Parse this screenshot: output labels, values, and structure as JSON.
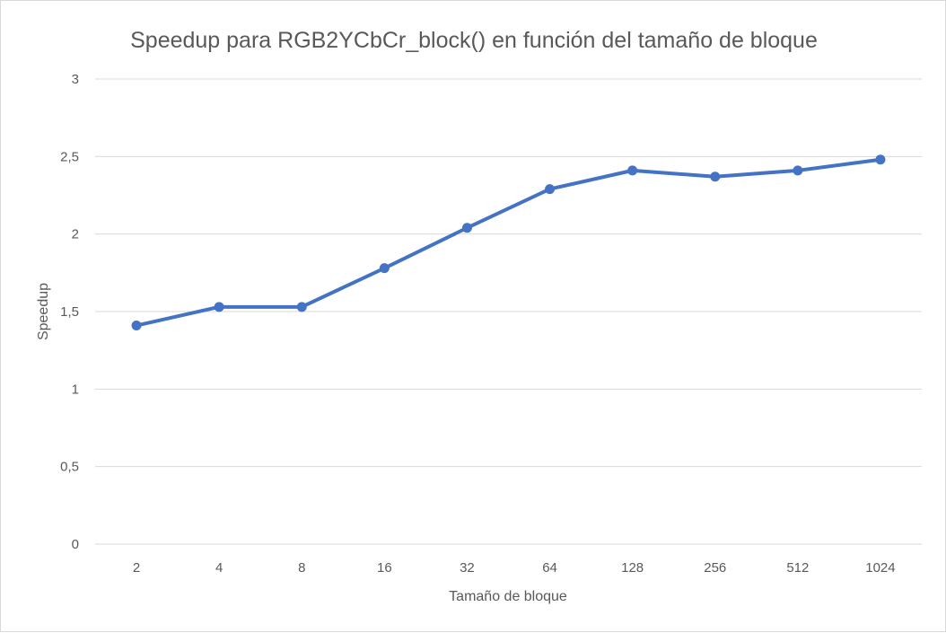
{
  "chart_data": {
    "type": "line",
    "title": "Speedup para RGB2YCbCr_block() en función del tamaño de bloque",
    "xlabel": "Tamaño de bloque",
    "ylabel": "Speedup",
    "categories": [
      "2",
      "4",
      "8",
      "16",
      "32",
      "64",
      "128",
      "256",
      "512",
      "1024"
    ],
    "series": [
      {
        "values": [
          1.41,
          1.53,
          1.53,
          1.78,
          2.04,
          2.29,
          2.41,
          2.37,
          2.41,
          2.48
        ],
        "color": "#4472c4"
      }
    ],
    "ylim": [
      0,
      3
    ],
    "yticks": [
      0,
      0.5,
      1,
      1.5,
      2,
      2.5,
      3
    ],
    "ytick_labels": [
      "0",
      "0,5",
      "1",
      "1,5",
      "2",
      "2,5",
      "3"
    ],
    "grid": true,
    "legend": "none",
    "marker": "circle"
  }
}
